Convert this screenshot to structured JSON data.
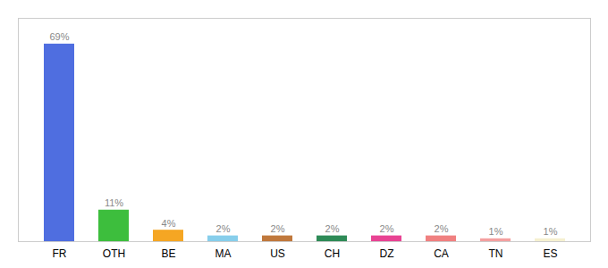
{
  "chart_data": {
    "type": "bar",
    "categories": [
      "FR",
      "OTH",
      "BE",
      "MA",
      "US",
      "CH",
      "DZ",
      "CA",
      "TN",
      "ES"
    ],
    "values": [
      69,
      11,
      4,
      2,
      2,
      2,
      2,
      2,
      1,
      1
    ],
    "value_labels": [
      "69%",
      "11%",
      "4%",
      "2%",
      "2%",
      "2%",
      "2%",
      "2%",
      "1%",
      "1%"
    ],
    "colors": [
      "#4F6EE0",
      "#3DBE3D",
      "#F5A623",
      "#87CEEB",
      "#C0783C",
      "#2E8B57",
      "#E84393",
      "#F08080",
      "#F4A0A0",
      "#F5F0D0"
    ],
    "ylim": [
      0,
      78
    ],
    "grid": false,
    "data_labels": true,
    "tick_labels": "x"
  }
}
